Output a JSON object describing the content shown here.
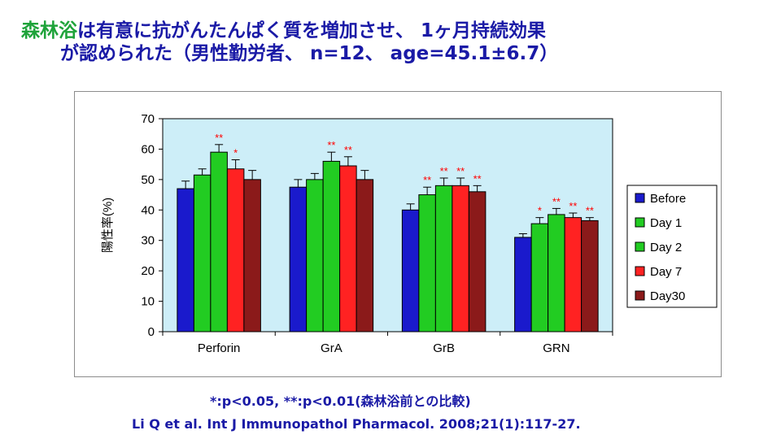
{
  "slide": {
    "title_highlight": "森林浴",
    "title_rest": "は有意に抗がんたんぱく質を増加させ、 1ヶ月持続効果",
    "title_line2": "が認められた（男性勤労者、 n=12、 age=45.1±6.7）",
    "footnote": "*:p<0.05, **:p<0.01(森林浴前との比較)",
    "citation": "Li Q et al. Int J Immunopathol Pharmacol. 2008;21(1):117-27."
  },
  "chart_data": {
    "type": "bar",
    "categories": [
      "Perforin",
      "GrA",
      "GrB",
      "GRN"
    ],
    "ylabel": "陽性率(%)",
    "ylim": [
      0,
      70
    ],
    "yticks": [
      "0",
      "10",
      "20",
      "30",
      "40",
      "50",
      "60",
      "70"
    ],
    "grid": false,
    "legend_position": "right",
    "plot_background": "#cdeef8",
    "series": [
      {
        "name": "Before",
        "color": "#1a1acc",
        "values": [
          47,
          47.5,
          40,
          31
        ],
        "errors": [
          2.5,
          2.5,
          2,
          1.2
        ],
        "sig": [
          "",
          "",
          "",
          ""
        ]
      },
      {
        "name": "Day 1",
        "color": "#22cc22",
        "values": [
          51.5,
          50,
          45,
          35.5
        ],
        "errors": [
          2,
          2,
          2.5,
          2
        ],
        "sig": [
          "",
          "",
          "**",
          "*"
        ]
      },
      {
        "name": "Day 2",
        "color": "#22cc22",
        "values": [
          59,
          56,
          48,
          38.5
        ],
        "errors": [
          2.5,
          3,
          2.5,
          2
        ],
        "sig": [
          "**",
          "**",
          "**",
          "**"
        ]
      },
      {
        "name": "Day 7",
        "color": "#ff2222",
        "values": [
          53.5,
          54.5,
          48,
          37.5
        ],
        "errors": [
          3,
          3,
          2.5,
          1.5
        ],
        "sig": [
          "*",
          "**",
          "**",
          "**"
        ]
      },
      {
        "name": "Day30",
        "color": "#8b1a1a",
        "values": [
          50,
          50,
          46,
          36.5
        ],
        "errors": [
          3,
          3,
          2,
          1
        ],
        "sig": [
          "",
          "",
          "**",
          "**"
        ]
      }
    ]
  }
}
